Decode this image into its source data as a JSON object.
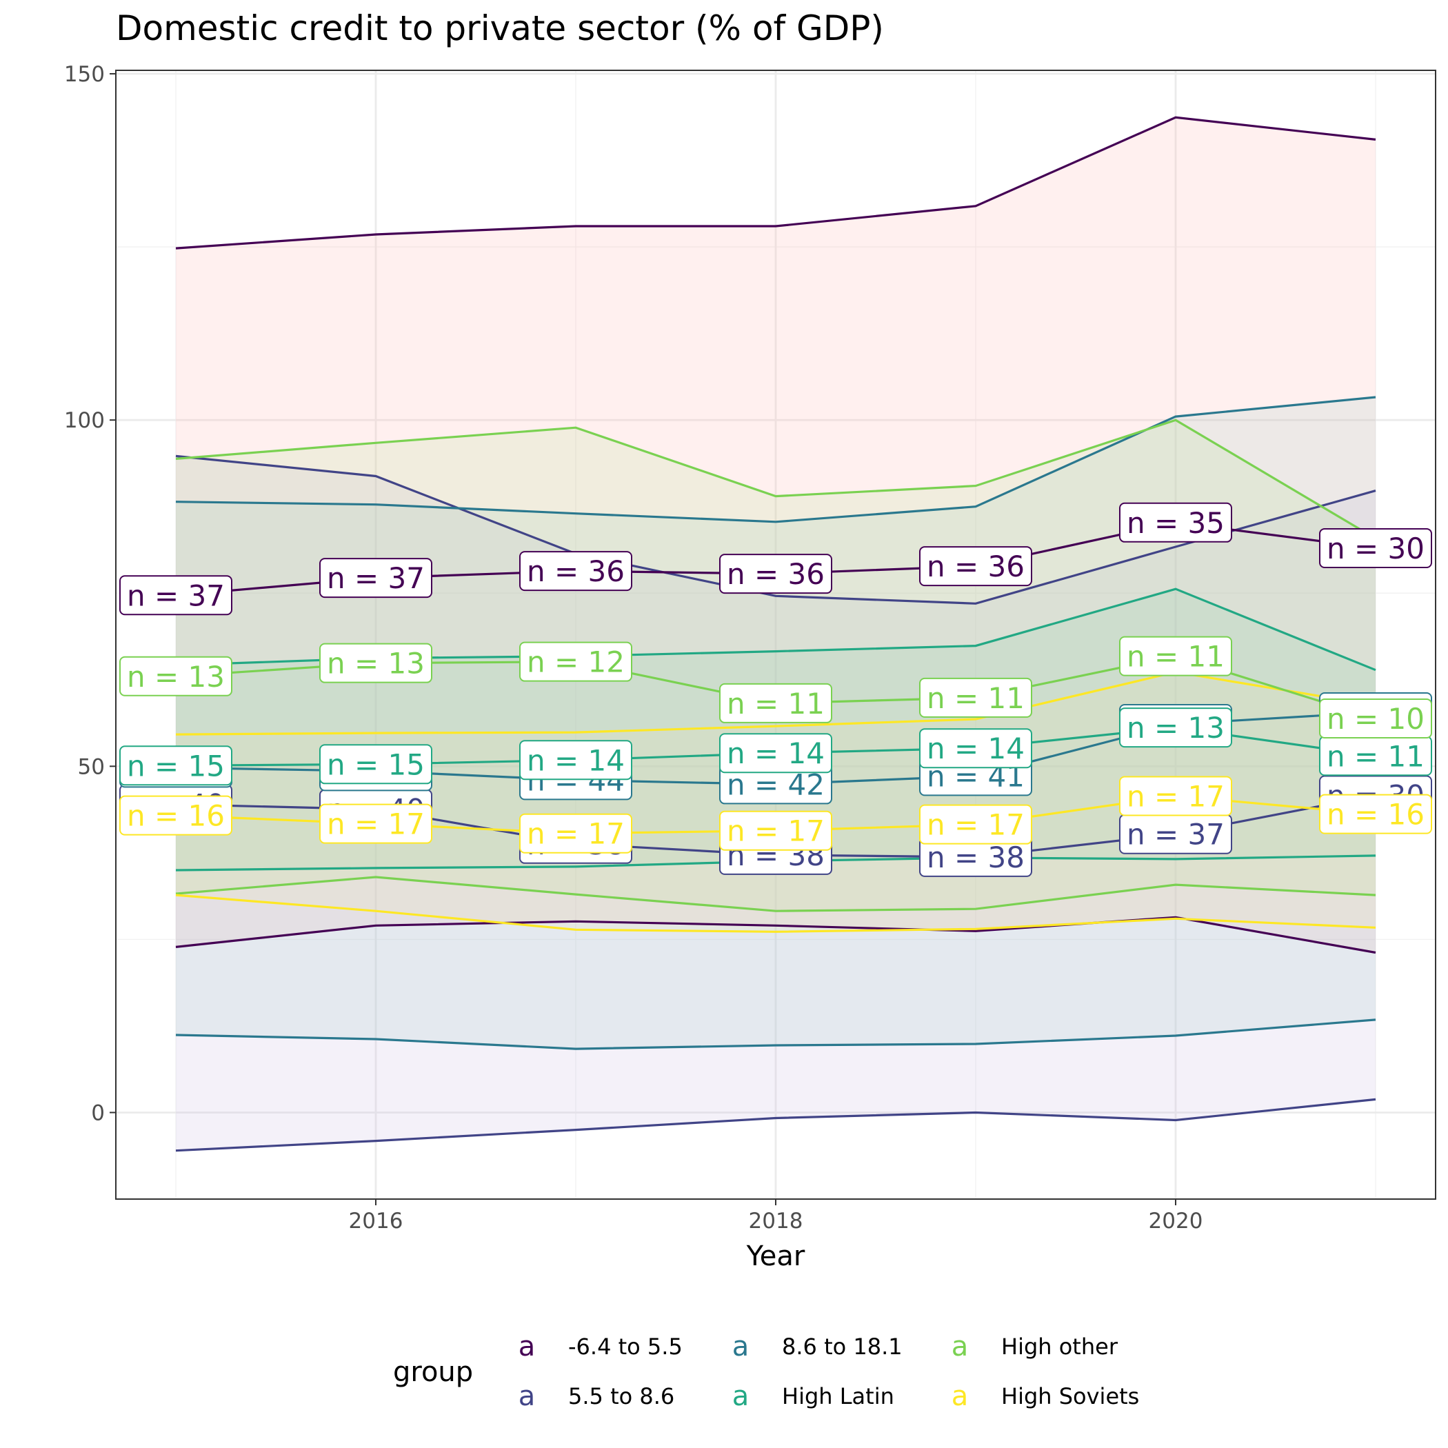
{
  "chart_data": {
    "type": "area",
    "title": "Domestic credit to private sector (% of GDP)",
    "xlabel": "Year",
    "ylabel": "",
    "xlim": [
      2014.7,
      2021.3
    ],
    "ylim": [
      -12.5,
      150.5
    ],
    "x_ticks": [
      2016,
      2018,
      2020
    ],
    "x_tick_labels": [
      "2016",
      "2018",
      "2020"
    ],
    "y_ticks": [
      0,
      50,
      100,
      150
    ],
    "y_tick_labels": [
      "0",
      "50",
      "100",
      "150"
    ],
    "grid": true,
    "legend": {
      "title": "group",
      "position": "bottom",
      "key_glyph": "a",
      "entries": [
        {
          "label": "-6.4 to 5.5",
          "color": "#440154"
        },
        {
          "label": "5.5 to 8.6",
          "color": "#414487"
        },
        {
          "label": "8.6 to 18.1",
          "color": "#2A788E"
        },
        {
          "label": "High Latin",
          "color": "#22A884"
        },
        {
          "label": "High other",
          "color": "#7AD151"
        },
        {
          "label": "High Soviets",
          "color": "#FDE725"
        }
      ]
    },
    "x": [
      2015,
      2016,
      2017,
      2018,
      2019,
      2020,
      2021
    ],
    "series": [
      {
        "name": "-6.4 to 5.5",
        "color": "#440154",
        "fill": "#FFB6B0",
        "median": [
          74.7,
          77.2,
          78.2,
          77.8,
          78.9,
          85.2,
          81.5
        ],
        "upper": [
          124.8,
          126.8,
          128.0,
          128.0,
          130.9,
          143.7,
          140.5
        ],
        "lower": [
          23.9,
          27.0,
          27.6,
          27.0,
          26.2,
          28.2,
          23.1
        ],
        "n": [
          37,
          37,
          36,
          36,
          36,
          35,
          30
        ]
      },
      {
        "name": "5.5 to 8.6",
        "color": "#414487",
        "fill": "#C8B8E0",
        "median": [
          44.5,
          43.8,
          38.8,
          37.2,
          36.9,
          40.2,
          45.8
        ],
        "upper": [
          94.8,
          91.9,
          80.7,
          74.6,
          73.5,
          81.7,
          89.8
        ],
        "lower": [
          -5.5,
          -4.1,
          -2.5,
          -0.8,
          0.0,
          -1.1,
          1.9
        ],
        "n": [
          40,
          40,
          38,
          38,
          38,
          37,
          30
        ]
      },
      {
        "name": "8.6 to 18.1",
        "color": "#2A788E",
        "fill": "#A5CCC8",
        "median": [
          49.8,
          49.3,
          48.0,
          47.4,
          48.6,
          56.1,
          57.8
        ],
        "upper": [
          88.2,
          87.8,
          86.5,
          85.3,
          87.5,
          100.5,
          103.3
        ],
        "lower": [
          11.2,
          10.6,
          9.2,
          9.7,
          9.9,
          11.1,
          13.4
        ],
        "n": [
          43,
          43,
          44,
          42,
          41,
          41,
          30
        ]
      },
      {
        "name": "High Latin",
        "color": "#22A884",
        "fill": "#8FCCB2",
        "median": [
          50.1,
          50.3,
          50.9,
          51.9,
          52.6,
          55.6,
          51.5
        ],
        "upper": [
          64.6,
          65.6,
          65.9,
          66.6,
          67.4,
          75.6,
          63.9
        ],
        "lower": [
          35.0,
          35.3,
          35.5,
          36.3,
          36.8,
          36.6,
          37.1
        ],
        "n": [
          15,
          15,
          14,
          14,
          14,
          13,
          11
        ]
      },
      {
        "name": "High other",
        "color": "#7AD151",
        "fill": "#B8E09C",
        "median": [
          63.0,
          64.9,
          65.1,
          59.1,
          59.9,
          65.9,
          56.9
        ],
        "upper": [
          94.4,
          96.7,
          98.9,
          89.0,
          90.5,
          100.0,
          82.9
        ],
        "lower": [
          31.6,
          34.0,
          31.5,
          29.1,
          29.4,
          32.9,
          31.4
        ],
        "n": [
          13,
          13,
          12,
          11,
          11,
          11,
          10
        ]
      },
      {
        "name": "High Soviets",
        "color": "#FDE725",
        "fill": "#ECE8B4",
        "median": [
          42.9,
          41.7,
          40.3,
          40.7,
          41.6,
          45.7,
          43.1
        ],
        "upper": [
          54.6,
          54.8,
          54.9,
          55.8,
          56.8,
          63.6,
          58.8
        ],
        "lower": [
          31.4,
          29.1,
          26.4,
          26.1,
          26.5,
          28.0,
          26.7
        ],
        "n": [
          16,
          17,
          17,
          17,
          17,
          17,
          16
        ]
      }
    ]
  }
}
